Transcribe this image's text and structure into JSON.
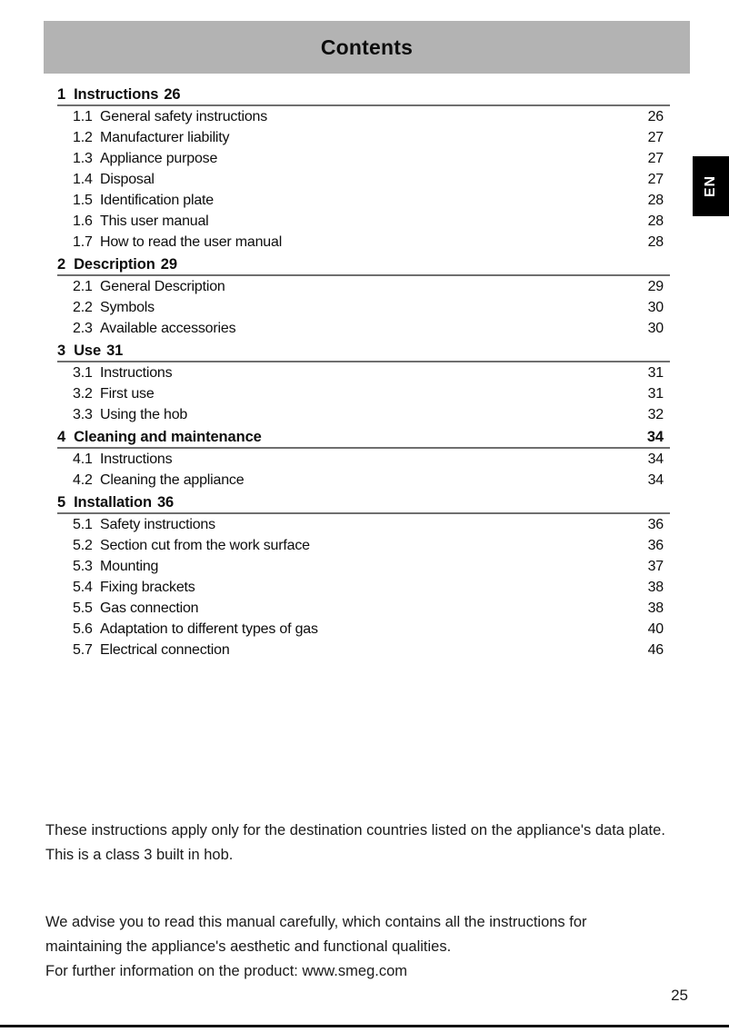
{
  "header": {
    "title": "Contents",
    "language_tab": "EN"
  },
  "toc": {
    "sections": [
      {
        "number": "1",
        "title": "Instructions",
        "page": "26",
        "page_position": "inline",
        "entries": [
          {
            "number": "1.1",
            "title": "General safety instructions",
            "page": "26"
          },
          {
            "number": "1.2",
            "title": "Manufacturer liability",
            "page": "27"
          },
          {
            "number": "1.3",
            "title": "Appliance purpose",
            "page": "27"
          },
          {
            "number": "1.4",
            "title": "Disposal",
            "page": "27"
          },
          {
            "number": "1.5",
            "title": "Identification plate",
            "page": "28"
          },
          {
            "number": "1.6",
            "title": "This user manual",
            "page": "28"
          },
          {
            "number": "1.7",
            "title": "How to read the user manual",
            "page": "28"
          }
        ]
      },
      {
        "number": "2",
        "title": "Description",
        "page": "29",
        "page_position": "inline",
        "entries": [
          {
            "number": "2.1",
            "title": "General Description",
            "page": "29"
          },
          {
            "number": "2.2",
            "title": "Symbols",
            "page": "30"
          },
          {
            "number": "2.3",
            "title": "Available accessories",
            "page": "30"
          }
        ]
      },
      {
        "number": "3",
        "title": "Use",
        "page": "31",
        "page_position": "inline",
        "entries": [
          {
            "number": "3.1",
            "title": "Instructions",
            "page": "31"
          },
          {
            "number": "3.2",
            "title": "First use",
            "page": "31"
          },
          {
            "number": "3.3",
            "title": "Using the hob",
            "page": "32"
          }
        ]
      },
      {
        "number": "4",
        "title": "Cleaning and maintenance",
        "page": "34",
        "page_position": "right",
        "entries": [
          {
            "number": "4.1",
            "title": "Instructions",
            "page": "34"
          },
          {
            "number": "4.2",
            "title": "Cleaning the appliance",
            "page": "34"
          }
        ]
      },
      {
        "number": "5",
        "title": "Installation",
        "page": "36",
        "page_position": "inline",
        "entries": [
          {
            "number": "5.1",
            "title": "Safety instructions",
            "page": "36"
          },
          {
            "number": "5.2",
            "title": "Section cut from the work surface",
            "page": "36"
          },
          {
            "number": "5.3",
            "title": "Mounting",
            "page": "37"
          },
          {
            "number": "5.4",
            "title": "Fixing brackets",
            "page": "38"
          },
          {
            "number": "5.5",
            "title": "Gas connection",
            "page": "38"
          },
          {
            "number": "5.6",
            "title": "Adaptation to different types of gas",
            "page": "40"
          },
          {
            "number": "5.7",
            "title": "Electrical connection",
            "page": "46"
          }
        ]
      }
    ]
  },
  "notes": {
    "line1": "These instructions apply only for the destination countries listed on the appliance's data plate.",
    "line2": "This is a class 3 built in hob.",
    "line3": "We advise you to read this manual carefully, which contains all the instructions for",
    "line4": "maintaining the appliance's aesthetic and functional qualities.",
    "line5": "For further information on the product: www.smeg.com"
  },
  "footer": {
    "page_number": "25"
  },
  "colors": {
    "header_bg": "#b3b3b3",
    "tab_bg": "#000000",
    "tab_text": "#ffffff",
    "rule": "#6f6f6f",
    "text": "#0d0d0d",
    "bottom_line": "#111111"
  }
}
